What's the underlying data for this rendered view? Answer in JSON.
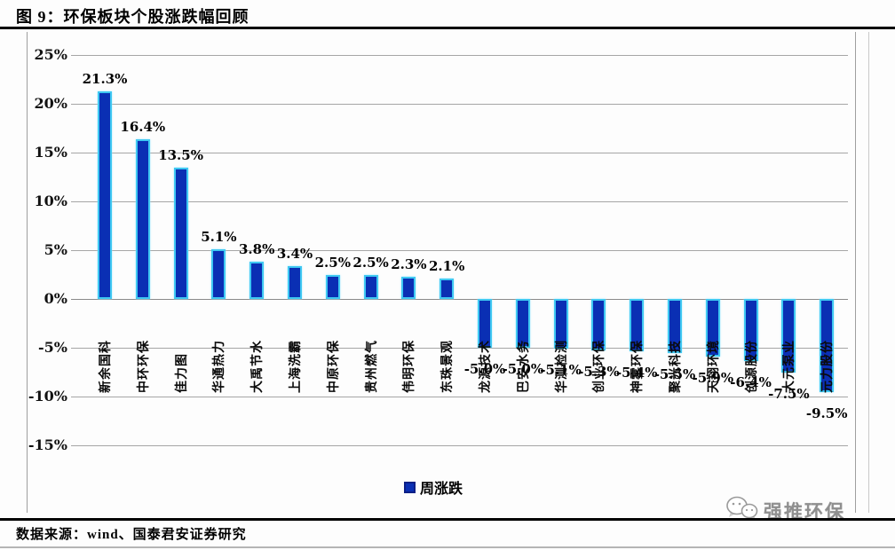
{
  "figure": {
    "title": "图 9：环保板块个股涨跌幅回顾",
    "source": "数据来源：wind、国泰君安证券研究",
    "watermark": "强推环保"
  },
  "legend": {
    "label": "周涨跌",
    "color": "#0a2fb4"
  },
  "chart_data": {
    "type": "bar",
    "title": "环保板块个股涨跌幅回顾",
    "series_name": "周涨跌",
    "categories": [
      "新余国科",
      "中环环保",
      "佳力图",
      "华通热力",
      "大禹节水",
      "上海洗霸",
      "中原环保",
      "贵州燃气",
      "伟明环保",
      "东珠景观",
      "龙源技术",
      "巴安水务",
      "华测检测",
      "创业环保",
      "神雾环保",
      "聚光科技",
      "天翔环境",
      "创源股份",
      "大元泵业",
      "元力股份"
    ],
    "values": [
      21.3,
      16.4,
      13.5,
      5.1,
      3.8,
      3.4,
      2.5,
      2.5,
      2.3,
      2.1,
      -5.0,
      -5.0,
      -5.1,
      -5.3,
      -5.4,
      -5.5,
      -5.9,
      -6.4,
      -7.5,
      -9.5
    ],
    "labels": [
      "21.3%",
      "16.4%",
      "13.5%",
      "5.1%",
      "3.8%",
      "3.4%",
      "2.5%",
      "2.5%",
      "2.3%",
      "2.1%",
      "-5.0%",
      "-5.0%",
      "-5.1%",
      "-5.3%",
      "-5.4%",
      "-5.5%",
      "-5.9%",
      "-6.4%",
      "-7.5%",
      "-9.5%"
    ],
    "ytick_values": [
      25,
      20,
      15,
      10,
      5,
      0,
      -5,
      -10,
      -15
    ],
    "ytick_labels": [
      "25%",
      "20%",
      "15%",
      "10%",
      "5%",
      "0%",
      "-5%",
      "-10%",
      "-15%"
    ],
    "ylim": [
      -15,
      25
    ],
    "xlabel": "",
    "ylabel": "",
    "grid": true,
    "legend_position": "bottom",
    "bar_color": "#0a2fb4",
    "bar_border_color": "#3fc8f2"
  }
}
